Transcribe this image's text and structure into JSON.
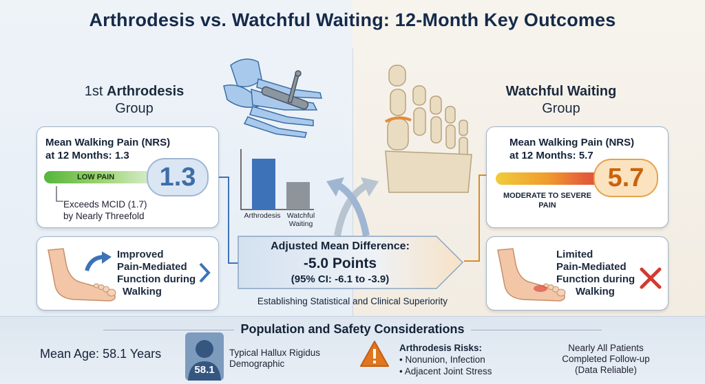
{
  "title": "Arthrodesis vs. Watchful Waiting: 12-Month Key Outcomes",
  "left_group": {
    "heading_prefix": "1st ",
    "heading_strong": "Arthrodesis",
    "heading_line2": "Group",
    "pain_card": {
      "title_line1": "Mean Walking Pain (NRS)",
      "title_line2": "at 12 Months: 1.3",
      "bar_label": "LOW PAIN",
      "value": "1.3",
      "note_line1": "Exceeds MCID (1.7)",
      "note_line2": "by Nearly Threefold"
    },
    "function_card": {
      "line1": "Improved",
      "line2": "Pain-Mediated",
      "line3": "Function during",
      "line4": "Walking"
    }
  },
  "right_group": {
    "heading_strong": "Watchful Waiting",
    "heading_line2": "Group",
    "pain_card": {
      "title_line1": "Mean Walking Pain (NRS)",
      "title_line2": "at 12 Months: 5.7",
      "bar_label_line1": "MODERATE TO SEVERE",
      "bar_label_line2": "PAIN",
      "value": "5.7"
    },
    "function_card": {
      "line1": "Limited",
      "line2": "Pain-Mediated",
      "line3": "Function during",
      "line4": "Walking"
    }
  },
  "mini_chart": {
    "bar1_label": "Arthrodesis",
    "bar2_label_line1": "Watchful",
    "bar2_label_line2": "Waiting",
    "colors": {
      "bar1": "#3d72b8",
      "bar2": "#8e949a"
    }
  },
  "difference": {
    "title": "Adjusted Mean Difference:",
    "value": "-5.0 Points",
    "ci": "(95% CI: -6.1 to -3.9)",
    "subtitle": "Establishing Statistical and Clinical Superiority"
  },
  "bottom": {
    "heading": "Population and Safety Considerations",
    "mean_age": "Mean Age: 58.1 Years",
    "avatar_label": "58.1",
    "demographic_line1": "Typical Hallux Rigidus",
    "demographic_line2": "Demographic",
    "risks_title": "Arthrodesis Risks:",
    "risks": [
      "• Nonunion, Infection",
      "• Adjacent Joint Stress"
    ],
    "followup_line1": "Nearly All Patients",
    "followup_line2": "Completed Follow-up",
    "followup_line3": "(Data Reliable)"
  },
  "colors": {
    "title": "#152a4a",
    "arthrodesis_accent": "#3d72b8",
    "watchful_accent": "#d98a2a",
    "warning": "#e0761f",
    "cross": "#d23a2e"
  }
}
